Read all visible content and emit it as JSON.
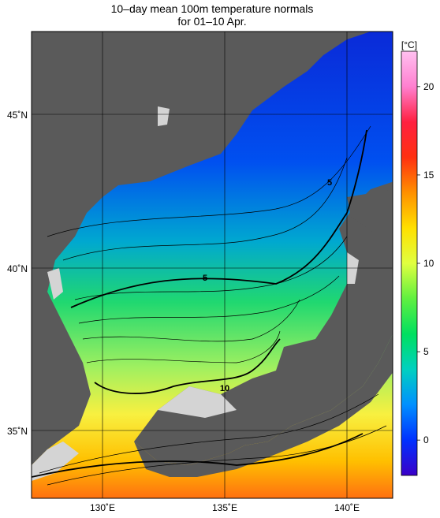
{
  "title": {
    "line1": "10–day mean 100m temperature normals",
    "line2": "for 01–10 Apr."
  },
  "map": {
    "lon_ticks": [
      "130˚E",
      "135˚E",
      "140˚E"
    ],
    "lat_ticks": [
      "45˚N",
      "40˚N",
      "35˚N"
    ],
    "extent": {
      "lon": [
        127,
        142
      ],
      "lat": [
        33,
        47.5
      ]
    },
    "land_color": "#5a5a5a",
    "shelf_color": "#d4d4d4",
    "contour_labels": [
      "5",
      "5",
      "10"
    ]
  },
  "colorbar": {
    "unit": "[°C]",
    "tick_labels": [
      "20",
      "15",
      "10",
      "5",
      "0"
    ],
    "range": [
      -2,
      22
    ],
    "stops": [
      "#3a00c8",
      "#0030ff",
      "#0090ff",
      "#00d0c0",
      "#00e060",
      "#60f040",
      "#e0ff40",
      "#ffe000",
      "#ff9000",
      "#ff3010",
      "#ff2040",
      "#ff80d0",
      "#ffc0f0"
    ]
  }
}
